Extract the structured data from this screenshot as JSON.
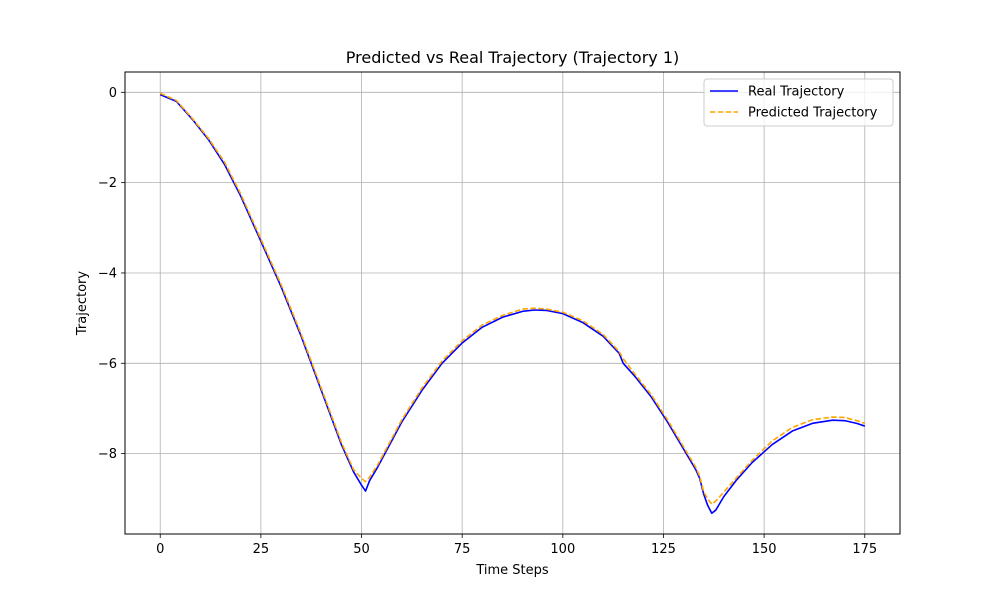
{
  "chart_data": {
    "type": "line",
    "title": "Predicted vs Real Trajectory (Trajectory 1)",
    "xlabel": "Time Steps",
    "ylabel": "Trajectory",
    "xlim": [
      -8.75,
      183.75
    ],
    "ylim": [
      -9.78,
      0.45
    ],
    "xticks": [
      0,
      25,
      50,
      75,
      100,
      125,
      150,
      175
    ],
    "yticks": [
      0,
      -2,
      -4,
      -6,
      -8
    ],
    "ytick_labels": [
      "0",
      "−2",
      "−4",
      "−6",
      "−8"
    ],
    "grid": true,
    "legend_position": "top-right",
    "series": [
      {
        "name": "Real Trajectory",
        "color": "#0000ff",
        "style": "solid",
        "points": [
          [
            0,
            -0.05
          ],
          [
            4,
            -0.2
          ],
          [
            8,
            -0.6
          ],
          [
            12,
            -1.05
          ],
          [
            16,
            -1.6
          ],
          [
            20,
            -2.3
          ],
          [
            25,
            -3.3
          ],
          [
            30,
            -4.3
          ],
          [
            35,
            -5.4
          ],
          [
            40,
            -6.6
          ],
          [
            45,
            -7.8
          ],
          [
            48,
            -8.4
          ],
          [
            50,
            -8.7
          ],
          [
            51,
            -8.83
          ],
          [
            52,
            -8.6
          ],
          [
            54,
            -8.3
          ],
          [
            57,
            -7.8
          ],
          [
            60,
            -7.3
          ],
          [
            65,
            -6.6
          ],
          [
            70,
            -6.0
          ],
          [
            75,
            -5.55
          ],
          [
            80,
            -5.2
          ],
          [
            85,
            -4.98
          ],
          [
            90,
            -4.85
          ],
          [
            93,
            -4.82
          ],
          [
            96,
            -4.83
          ],
          [
            100,
            -4.9
          ],
          [
            105,
            -5.1
          ],
          [
            110,
            -5.4
          ],
          [
            114,
            -5.78
          ],
          [
            115,
            -6.0
          ],
          [
            118,
            -6.3
          ],
          [
            122,
            -6.75
          ],
          [
            126,
            -7.3
          ],
          [
            130,
            -7.9
          ],
          [
            133,
            -8.35
          ],
          [
            134,
            -8.55
          ],
          [
            135,
            -8.9
          ],
          [
            136,
            -9.15
          ],
          [
            137,
            -9.32
          ],
          [
            138,
            -9.25
          ],
          [
            140,
            -8.95
          ],
          [
            143,
            -8.6
          ],
          [
            147,
            -8.2
          ],
          [
            152,
            -7.8
          ],
          [
            157,
            -7.5
          ],
          [
            162,
            -7.33
          ],
          [
            167,
            -7.26
          ],
          [
            170,
            -7.27
          ],
          [
            173,
            -7.33
          ],
          [
            175,
            -7.39
          ]
        ]
      },
      {
        "name": "Predicted Trajectory",
        "color": "#ffa500",
        "style": "dashed",
        "points": [
          [
            0,
            -0.02
          ],
          [
            4,
            -0.18
          ],
          [
            8,
            -0.58
          ],
          [
            12,
            -1.02
          ],
          [
            16,
            -1.55
          ],
          [
            20,
            -2.25
          ],
          [
            25,
            -3.25
          ],
          [
            30,
            -4.25
          ],
          [
            35,
            -5.35
          ],
          [
            40,
            -6.55
          ],
          [
            45,
            -7.75
          ],
          [
            48,
            -8.35
          ],
          [
            50,
            -8.55
          ],
          [
            51,
            -8.62
          ],
          [
            52,
            -8.52
          ],
          [
            54,
            -8.25
          ],
          [
            57,
            -7.75
          ],
          [
            60,
            -7.25
          ],
          [
            65,
            -6.55
          ],
          [
            70,
            -5.95
          ],
          [
            75,
            -5.5
          ],
          [
            80,
            -5.15
          ],
          [
            85,
            -4.94
          ],
          [
            90,
            -4.8
          ],
          [
            93,
            -4.78
          ],
          [
            96,
            -4.8
          ],
          [
            100,
            -4.87
          ],
          [
            105,
            -5.06
          ],
          [
            110,
            -5.36
          ],
          [
            114,
            -5.74
          ],
          [
            115,
            -5.9
          ],
          [
            118,
            -6.25
          ],
          [
            122,
            -6.7
          ],
          [
            126,
            -7.25
          ],
          [
            130,
            -7.85
          ],
          [
            133,
            -8.3
          ],
          [
            134,
            -8.5
          ],
          [
            135,
            -8.85
          ],
          [
            136,
            -9.0
          ],
          [
            137,
            -9.12
          ],
          [
            138,
            -9.05
          ],
          [
            140,
            -8.85
          ],
          [
            143,
            -8.55
          ],
          [
            147,
            -8.15
          ],
          [
            152,
            -7.72
          ],
          [
            157,
            -7.42
          ],
          [
            162,
            -7.25
          ],
          [
            167,
            -7.19
          ],
          [
            170,
            -7.2
          ],
          [
            173,
            -7.27
          ],
          [
            175,
            -7.33
          ]
        ]
      }
    ]
  }
}
